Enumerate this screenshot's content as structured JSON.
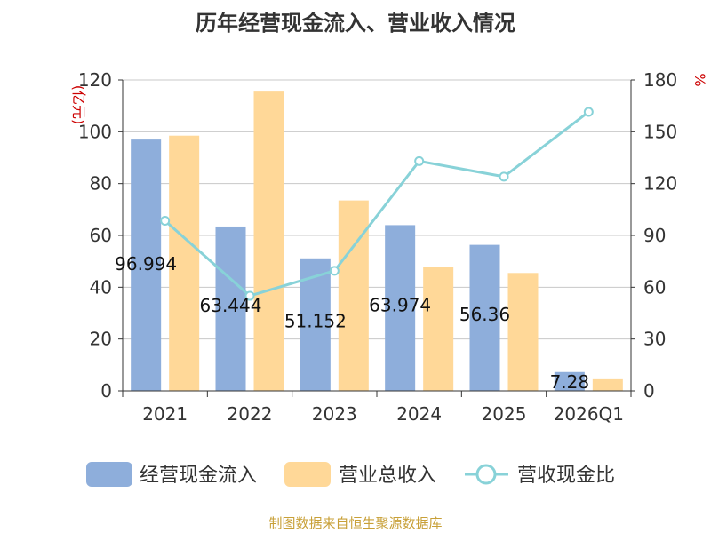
{
  "title": "历年经营现金流入、营业收入情况",
  "source": "制图数据来自恒生聚源数据库",
  "colors": {
    "cash_inflow": "#8eaedb",
    "revenue": "#ffd898",
    "ratio": "#88d2d8",
    "axis_unit": "#cc0000",
    "axis": "#333333",
    "grid": "#c8c8c8"
  },
  "chart_data": {
    "type": "bar",
    "categories": [
      "2021",
      "2022",
      "2023",
      "2024",
      "2025",
      "2026Q1"
    ],
    "series": [
      {
        "name": "经营现金流入",
        "type": "bar",
        "axis": "left",
        "values": [
          96.994,
          63.444,
          51.152,
          63.974,
          56.36,
          7.28
        ],
        "data_labels": [
          "96.994",
          "63.444",
          "51.152",
          "63.974",
          "56.36",
          "7.28"
        ]
      },
      {
        "name": "营业总收入",
        "type": "bar",
        "axis": "left",
        "values": [
          98.5,
          115.5,
          73.5,
          48.0,
          45.5,
          4.5
        ]
      },
      {
        "name": "营收现金比",
        "type": "line",
        "axis": "right",
        "values": [
          98.5,
          55.0,
          69.5,
          133.0,
          124.0,
          161.5
        ]
      }
    ],
    "y_left": {
      "unit": "(亿元)",
      "ticks": [
        "0",
        "20",
        "40",
        "60",
        "80",
        "100",
        "120"
      ],
      "ylim": [
        0,
        120
      ]
    },
    "y_right": {
      "unit": "%",
      "ticks": [
        "0",
        "30",
        "60",
        "90",
        "120",
        "150",
        "180"
      ],
      "ylim": [
        0,
        180
      ]
    },
    "grid": true,
    "legend_position": "bottom"
  }
}
